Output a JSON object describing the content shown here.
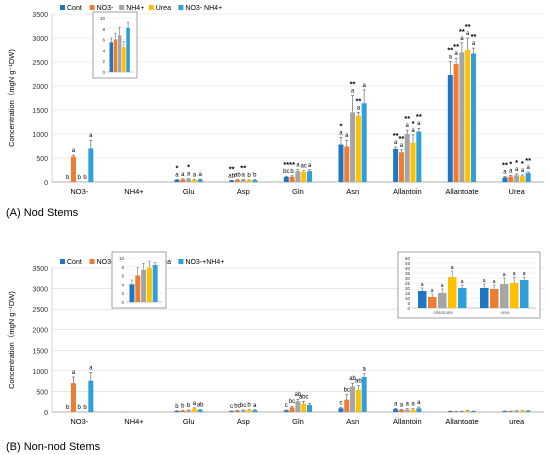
{
  "colors": {
    "Cont": "#1f77c4",
    "NO3-": "#ed7d31",
    "NH4+": "#a5a5a5",
    "Urea": "#ffc000",
    "NO3- NH4+": "#2e9fd8"
  },
  "chart_data": [
    {
      "type": "bar",
      "panel_label": "(A) Nod Stems",
      "ylabel": "Concentration（mgN g⁻¹DW)",
      "ylim": [
        0,
        3500
      ],
      "yticks": [
        0,
        500,
        1000,
        1500,
        2000,
        2500,
        3000,
        3500
      ],
      "legend": [
        "Cont",
        "NO3-",
        "NH4+",
        "Urea",
        "NO3-  NH4+"
      ],
      "legend_position": "top-left",
      "categories": [
        "NO3-",
        "NH4+",
        "Glu",
        "Asp",
        "Gln",
        "Asn",
        "Allantoin",
        "Allantoate",
        "Urea"
      ],
      "series": [
        {
          "name": "Cont",
          "values": [
            0,
            2,
            45,
            30,
            105,
            780,
            690,
            2230,
            95
          ],
          "errors": [
            0,
            0,
            8,
            6,
            15,
            150,
            40,
            280,
            20
          ]
        },
        {
          "name": "NO3-",
          "values": [
            530,
            2,
            55,
            40,
            110,
            740,
            620,
            2460,
            115
          ],
          "errors": [
            30,
            0,
            10,
            8,
            18,
            130,
            50,
            120,
            25
          ]
        },
        {
          "name": "NH4+",
          "values": [
            0,
            2,
            60,
            45,
            230,
            1450,
            1000,
            2700,
            140
          ],
          "errors": [
            0,
            0,
            10,
            10,
            30,
            350,
            80,
            200,
            30
          ]
        },
        {
          "name": "Urea",
          "values": [
            0,
            2,
            40,
            35,
            210,
            1380,
            820,
            2750,
            120
          ],
          "errors": [
            0,
            0,
            10,
            8,
            25,
            70,
            160,
            250,
            25
          ]
        },
        {
          "name": "NO3-  NH4+",
          "values": [
            700,
            2,
            50,
            40,
            225,
            1640,
            1050,
            2680,
            190
          ],
          "errors": [
            170,
            0,
            10,
            8,
            30,
            280,
            70,
            110,
            20
          ]
        }
      ],
      "letters": [
        [
          "b",
          "",
          "a",
          "ab",
          "bc",
          "a",
          "a",
          "a",
          "a"
        ],
        [
          "a",
          "",
          "a",
          "ab",
          "b",
          "a",
          "a",
          "a",
          "a"
        ],
        [
          "b",
          "",
          "a",
          "a",
          "a",
          "a",
          "a",
          "a",
          "a"
        ],
        [
          "b",
          "",
          "a",
          "b",
          "ac",
          "a",
          "a",
          "a",
          "a"
        ],
        [
          "a",
          "",
          "a",
          "b",
          "a",
          "a",
          "a",
          "a",
          "a"
        ]
      ],
      "stars": [
        [
          "",
          "",
          "*",
          "**",
          "**",
          "*",
          "**",
          "**",
          "**"
        ],
        [
          "",
          "",
          "",
          "",
          "**",
          "",
          "**",
          "**",
          "*"
        ],
        [
          "",
          "",
          "*",
          "**",
          "",
          "**",
          "**",
          "**",
          "*"
        ],
        [
          "",
          "",
          "",
          "",
          "",
          "**",
          "*",
          "**",
          "*"
        ],
        [
          "",
          "",
          "",
          "",
          "",
          "",
          "**",
          "**",
          "**"
        ]
      ],
      "inset": {
        "ylim": [
          0,
          10
        ],
        "yticks": [
          0,
          2,
          4,
          6,
          8,
          10
        ],
        "values": [
          5.5,
          6.0,
          6.8,
          4.6,
          8.2
        ],
        "errors": [
          0.8,
          1.2,
          1.5,
          1.0,
          1.0
        ]
      }
    },
    {
      "type": "bar",
      "panel_label": "(B) Non-nod Stems",
      "ylabel": "Concentration（mgN g⁻¹DW)",
      "ylim": [
        0,
        3500
      ],
      "yticks": [
        0,
        500,
        1000,
        1500,
        2000,
        2500,
        3000,
        3500
      ],
      "legend": [
        "Cont",
        "NO3-",
        "NH4+",
        "Urea",
        "NO3-+NH4+"
      ],
      "legend_position": "top-left",
      "categories": [
        "NO3-",
        "NH4+",
        "Glu",
        "Asp",
        "Gln",
        "Asn",
        "Allantoin",
        "Allantoate",
        "urea"
      ],
      "series": [
        {
          "name": "Cont",
          "values": [
            0,
            2,
            25,
            20,
            40,
            90,
            70,
            17,
            20
          ],
          "errors": [
            0,
            0,
            5,
            5,
            10,
            20,
            20,
            3,
            4
          ]
        },
        {
          "name": "NO3-",
          "values": [
            700,
            2,
            30,
            30,
            110,
            300,
            50,
            11,
            19
          ],
          "errors": [
            150,
            0,
            8,
            8,
            30,
            120,
            15,
            3,
            4
          ]
        },
        {
          "name": "NH4+",
          "values": [
            0,
            2,
            40,
            40,
            260,
            620,
            60,
            15,
            24
          ],
          "errors": [
            0,
            0,
            10,
            10,
            50,
            80,
            20,
            4,
            6
          ]
        },
        {
          "name": "Urea",
          "values": [
            0,
            2,
            80,
            45,
            200,
            540,
            60,
            31,
            25
          ],
          "errors": [
            0,
            0,
            20,
            10,
            60,
            100,
            20,
            6,
            6
          ]
        },
        {
          "name": "NO3-+NH4+",
          "values": [
            760,
            2,
            50,
            45,
            170,
            850,
            90,
            20,
            28
          ],
          "errors": [
            200,
            0,
            10,
            8,
            40,
            80,
            30,
            3,
            3
          ]
        }
      ],
      "letters": [
        [
          "b",
          "",
          "b",
          "c",
          "c",
          "c",
          "a",
          "",
          ""
        ],
        [
          "a",
          "",
          "b",
          "bc",
          "bc",
          "bc",
          "a",
          "",
          ""
        ],
        [
          "b",
          "",
          "b",
          "bc",
          "ab",
          "ab",
          "a",
          "",
          ""
        ],
        [
          "b",
          "",
          "a",
          "b",
          "abc",
          "ab",
          "a",
          "",
          ""
        ],
        [
          "a",
          "",
          "ab",
          "a",
          "",
          "a",
          "a",
          "",
          ""
        ]
      ],
      "inset_left": {
        "ylim": [
          0,
          10
        ],
        "yticks": [
          0,
          2,
          4,
          6,
          8,
          10
        ],
        "values": [
          4.0,
          6.0,
          7.3,
          7.8,
          8.4
        ],
        "errors": [
          1.0,
          1.8,
          1.5,
          1.5,
          0.6
        ]
      },
      "inset_right": {
        "ylim": [
          0,
          50
        ],
        "yticks": [
          0,
          5,
          10,
          15,
          20,
          25,
          30,
          35,
          40,
          45,
          50
        ],
        "groups": [
          "Allantoate",
          "urea"
        ],
        "values": [
          [
            17,
            11,
            15,
            31,
            20
          ],
          [
            20,
            19,
            24,
            25,
            28
          ]
        ],
        "errors": [
          [
            3,
            3,
            4,
            6,
            3
          ],
          [
            4,
            4,
            6,
            6,
            3
          ]
        ],
        "letters": [
          [
            "a",
            "a",
            "a",
            "a",
            "a"
          ],
          [
            "a",
            "a",
            "a",
            "a",
            "a"
          ]
        ]
      }
    }
  ]
}
